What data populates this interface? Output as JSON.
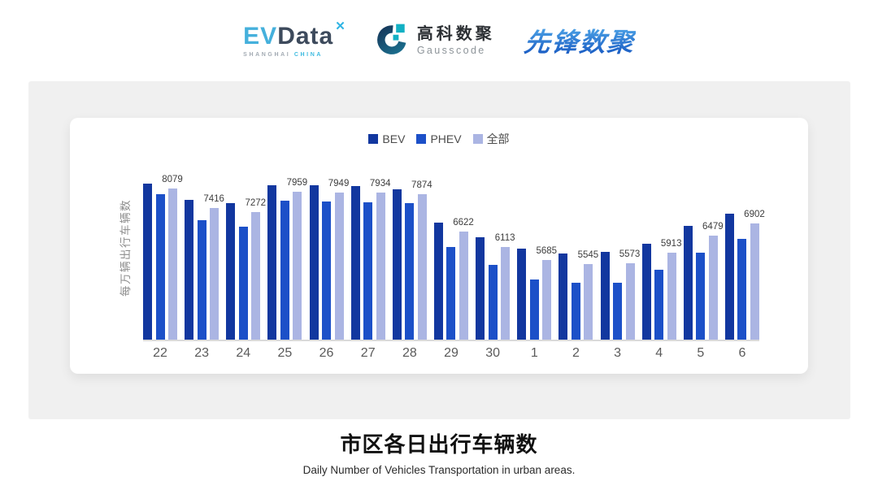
{
  "header": {
    "evdata": {
      "ev": "EV",
      "data": "Data",
      "sub_left": "SHANGHAI",
      "sub_right": "CHINA"
    },
    "gausscode": {
      "cn": "高科数聚",
      "en": "Gausscode"
    },
    "xianfeng": {
      "text": "先锋数聚"
    }
  },
  "chart_data": {
    "type": "bar",
    "title": "市区各日出行车辆数",
    "subtitle": "Daily Number of Vehicles Transportation in urban areas.",
    "ylabel": "每万辆出行车辆数",
    "categories": [
      "22",
      "23",
      "24",
      "25",
      "26",
      "27",
      "28",
      "29",
      "30",
      "1",
      "2",
      "3",
      "4",
      "5",
      "6"
    ],
    "series": [
      {
        "name": "BEV",
        "color": "#12379f",
        "estimated": true,
        "values": [
          8235,
          7680,
          7580,
          8190,
          8170,
          8150,
          8060,
          6930,
          6450,
          6060,
          5890,
          5940,
          6230,
          6810,
          7220
        ]
      },
      {
        "name": "PHEV",
        "color": "#1c50c8",
        "estimated": true,
        "values": [
          7880,
          7000,
          6790,
          7670,
          7630,
          7600,
          7580,
          6100,
          5510,
          5030,
          4920,
          4910,
          5340,
          5920,
          6380
        ]
      },
      {
        "name": "全部",
        "color": "#abb5e3",
        "data_labels": true,
        "values": [
          8079,
          7416,
          7272,
          7959,
          7949,
          7934,
          7874,
          6622,
          6113,
          5685,
          5545,
          5573,
          5913,
          6479,
          6902
        ]
      }
    ],
    "ylim": [
      3000,
      9000
    ],
    "grid": false,
    "legend_position": "top"
  },
  "footer": {
    "title": "市区各日出行车辆数",
    "subtitle": "Daily Number of Vehicles Transportation in urban areas."
  },
  "colors": {
    "panel_bg": "#f0f0f0",
    "card_bg": "#ffffff",
    "axis_line": "#dadada",
    "tick_text": "#5a5a5a",
    "value_label": "#3d3d3d",
    "evdata_blue": "#45b0dc",
    "evdata_dark": "#3d4a5c",
    "gauss_teal": "#12b0c4",
    "gauss_navy": "#16395c",
    "xianfeng_blue": "#2478d4"
  }
}
